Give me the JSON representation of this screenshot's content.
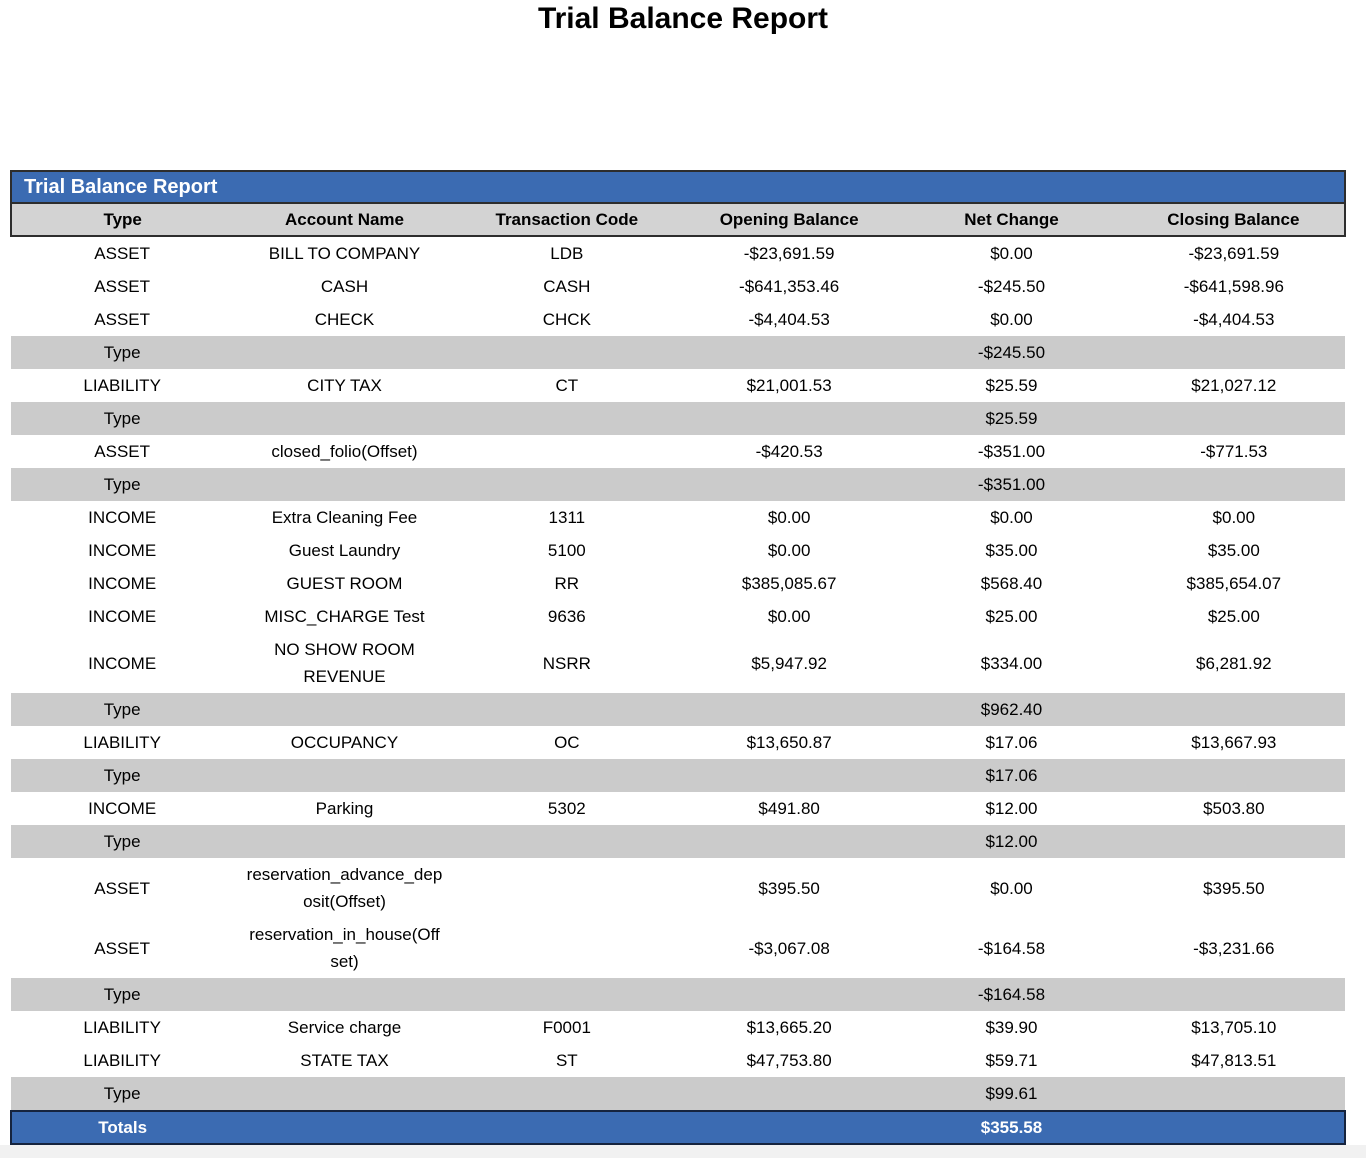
{
  "page": {
    "title": "Trial Balance Report"
  },
  "report": {
    "header_title": "Trial Balance Report",
    "columns": [
      "Type",
      "Account Name",
      "Transaction Code",
      "Opening Balance",
      "Net Change",
      "Closing Balance"
    ],
    "rows": [
      {
        "kind": "data",
        "type": "ASSET",
        "account": "BILL TO COMPANY",
        "code": "LDB",
        "opening": "-$23,691.59",
        "net": "$0.00",
        "closing": "-$23,691.59"
      },
      {
        "kind": "data",
        "type": "ASSET",
        "account": "CASH",
        "code": "CASH",
        "opening": "-$641,353.46",
        "net": "-$245.50",
        "closing": "-$641,598.96"
      },
      {
        "kind": "data",
        "type": "ASSET",
        "account": "CHECK",
        "code": "CHCK",
        "opening": "-$4,404.53",
        "net": "$0.00",
        "closing": "-$4,404.53"
      },
      {
        "kind": "subtotal",
        "label": "Type",
        "net": "-$245.50"
      },
      {
        "kind": "data",
        "type": "LIABILITY",
        "account": "CITY TAX",
        "code": "CT",
        "opening": "$21,001.53",
        "net": "$25.59",
        "closing": "$21,027.12"
      },
      {
        "kind": "subtotal",
        "label": "Type",
        "net": "$25.59"
      },
      {
        "kind": "data",
        "type": "ASSET",
        "account": "closed_folio(Offset)",
        "code": "",
        "opening": "-$420.53",
        "net": "-$351.00",
        "closing": "-$771.53"
      },
      {
        "kind": "subtotal",
        "label": "Type",
        "net": "-$351.00"
      },
      {
        "kind": "data",
        "type": "INCOME",
        "account": "Extra Cleaning Fee",
        "code": "1311",
        "opening": "$0.00",
        "net": "$0.00",
        "closing": "$0.00"
      },
      {
        "kind": "data",
        "type": "INCOME",
        "account": "Guest Laundry",
        "code": "5100",
        "opening": "$0.00",
        "net": "$35.00",
        "closing": "$35.00"
      },
      {
        "kind": "data",
        "type": "INCOME",
        "account": "GUEST ROOM",
        "code": "RR",
        "opening": "$385,085.67",
        "net": "$568.40",
        "closing": "$385,654.07"
      },
      {
        "kind": "data",
        "type": "INCOME",
        "account": "MISC_CHARGE Test",
        "code": "9636",
        "opening": "$0.00",
        "net": "$25.00",
        "closing": "$25.00"
      },
      {
        "kind": "data",
        "type": "INCOME",
        "account": "NO SHOW ROOM REVENUE",
        "code": "NSRR",
        "opening": "$5,947.92",
        "net": "$334.00",
        "closing": "$6,281.92"
      },
      {
        "kind": "subtotal",
        "label": "Type",
        "net": "$962.40"
      },
      {
        "kind": "data",
        "type": "LIABILITY",
        "account": "OCCUPANCY",
        "code": "OC",
        "opening": "$13,650.87",
        "net": "$17.06",
        "closing": "$13,667.93"
      },
      {
        "kind": "subtotal",
        "label": "Type",
        "net": "$17.06"
      },
      {
        "kind": "data",
        "type": "INCOME",
        "account": "Parking",
        "code": "5302",
        "opening": "$491.80",
        "net": "$12.00",
        "closing": "$503.80"
      },
      {
        "kind": "subtotal",
        "label": "Type",
        "net": "$12.00"
      },
      {
        "kind": "data",
        "type": "ASSET",
        "account": "reservation_advance_deposit(Offset)",
        "code": "",
        "opening": "$395.50",
        "net": "$0.00",
        "closing": "$395.50"
      },
      {
        "kind": "data",
        "type": "ASSET",
        "account": "reservation_in_house(Offset)",
        "code": "",
        "opening": "-$3,067.08",
        "net": "-$164.58",
        "closing": "-$3,231.66"
      },
      {
        "kind": "subtotal",
        "label": "Type",
        "net": "-$164.58"
      },
      {
        "kind": "data",
        "type": "LIABILITY",
        "account": "Service charge",
        "code": "F0001",
        "opening": "$13,665.20",
        "net": "$39.90",
        "closing": "$13,705.10"
      },
      {
        "kind": "data",
        "type": "LIABILITY",
        "account": "STATE TAX",
        "code": "ST",
        "opening": "$47,753.80",
        "net": "$59.71",
        "closing": "$47,813.51"
      },
      {
        "kind": "subtotal",
        "label": "Type",
        "net": "$99.61"
      }
    ],
    "totals": {
      "label": "Totals",
      "net": "$355.58"
    }
  },
  "colors": {
    "header_blue": "#3b6bb2",
    "column_header_gray": "#d3d3d3",
    "subtotal_gray": "#cbcbcb",
    "header_border_dark": "#2d2d2d",
    "totals_border_dark": "#16243e",
    "bottom_strip_gray": "#f1f1f1"
  }
}
